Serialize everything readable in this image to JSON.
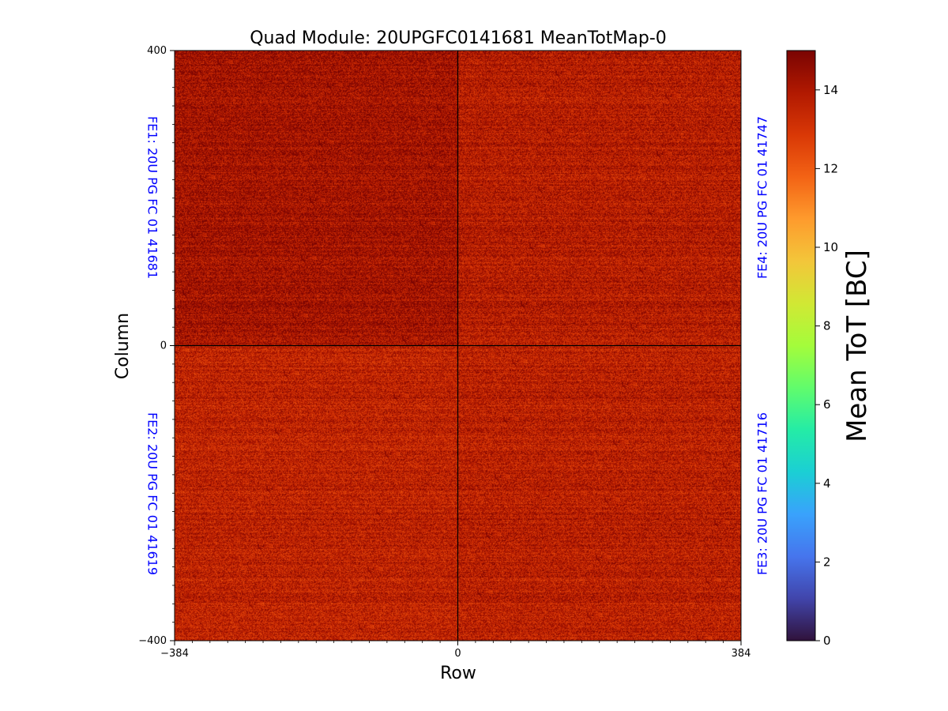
{
  "chart_data": {
    "type": "heatmap",
    "title": "Quad Module: 20UPGFC0141681 MeanTotMap-0",
    "xlabel": "Row",
    "ylabel": "Column",
    "xlim": [
      -384,
      384
    ],
    "ylim": [
      -400,
      400
    ],
    "x_ticks": [
      -384,
      0,
      384
    ],
    "y_ticks": [
      -400,
      0,
      400
    ],
    "x_tick_labels": [
      "−384",
      "0",
      "384"
    ],
    "y_tick_labels": [
      "−400",
      "0",
      "400"
    ],
    "grid": false,
    "colorbar": {
      "label": "Mean ToT [BC]",
      "range": [
        0,
        15
      ],
      "ticks": [
        0,
        2,
        4,
        6,
        8,
        10,
        12,
        14
      ],
      "colormap": "turbo"
    },
    "quadrants": [
      {
        "position": "top-left",
        "label": "FE1: 20U PG FC 01 41681",
        "typical_value": 14.2,
        "min_value": 12
      },
      {
        "position": "bottom-left",
        "label": "FE2: 20U PG FC 01 41619",
        "typical_value": 13.6,
        "min_value": 12
      },
      {
        "position": "bottom-right",
        "label": "FE3: 20U PG FC 01 41716",
        "typical_value": 13.7,
        "min_value": 12
      },
      {
        "position": "top-right",
        "label": "FE4: 20U PG FC 01 41747",
        "typical_value": 13.8,
        "min_value": 12
      }
    ],
    "divider_lines": {
      "x": 0,
      "y": 0
    },
    "annotation_color": "#0000ff"
  }
}
